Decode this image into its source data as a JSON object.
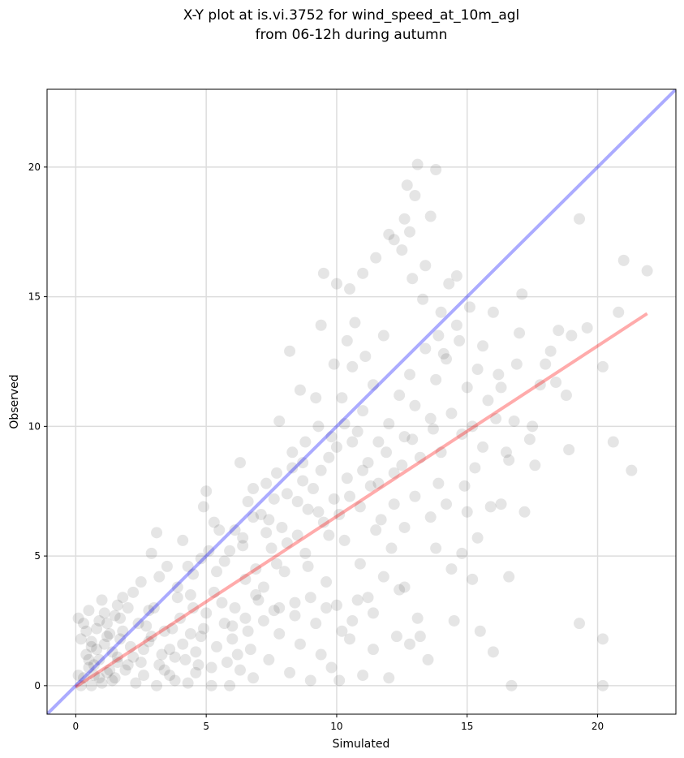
{
  "chart_data": {
    "type": "scatter",
    "title_line1": "X-Y plot at is.vi.3752 for wind_speed_at_10m_agl",
    "title_line2": "from 06-12h during autumn",
    "xlabel": "Simulated",
    "ylabel": "Observed",
    "xlim": [
      -1.1,
      23.0
    ],
    "ylim": [
      -1.1,
      23.0
    ],
    "xticks": [
      0,
      5,
      10,
      15,
      20
    ],
    "yticks": [
      0,
      5,
      10,
      15,
      20
    ],
    "grid": true,
    "colors": {
      "points": "#000000",
      "one_to_one_line": "#0000ff",
      "fit_line": "#ff0000"
    },
    "one_to_one_line": {
      "x": [
        -1.1,
        23.0
      ],
      "y": [
        -1.1,
        23.0
      ]
    },
    "fit_line": {
      "x": [
        0.0,
        21.9
      ],
      "y": [
        -0.05,
        14.35
      ]
    },
    "points": [
      [
        0.1,
        2.6
      ],
      [
        0.2,
        1.8
      ],
      [
        0.3,
        2.4
      ],
      [
        0.4,
        1.2
      ],
      [
        0.5,
        2.9
      ],
      [
        0.6,
        1.5
      ],
      [
        0.7,
        0.8
      ],
      [
        0.8,
        2.2
      ],
      [
        0.9,
        1.0
      ],
      [
        1.0,
        3.3
      ],
      [
        1.1,
        1.6
      ],
      [
        1.2,
        0.5
      ],
      [
        1.3,
        2.0
      ],
      [
        1.4,
        1.3
      ],
      [
        1.5,
        2.7
      ],
      [
        1.6,
        0.9
      ],
      [
        1.7,
        1.8
      ],
      [
        1.8,
        3.4
      ],
      [
        0.3,
        0.3
      ],
      [
        0.6,
        0.0
      ],
      [
        1.0,
        0.1
      ],
      [
        1.4,
        0.2
      ],
      [
        1.9,
        0.6
      ],
      [
        2.2,
        1.1
      ],
      [
        2.4,
        2.4
      ],
      [
        2.6,
        0.4
      ],
      [
        2.8,
        1.7
      ],
      [
        3.0,
        3.0
      ],
      [
        3.2,
        0.8
      ],
      [
        3.4,
        2.1
      ],
      [
        3.6,
        1.4
      ],
      [
        3.8,
        0.2
      ],
      [
        4.0,
        2.6
      ],
      [
        4.2,
        1.0
      ],
      [
        4.4,
        3.5
      ],
      [
        4.6,
        0.5
      ],
      [
        4.8,
        1.9
      ],
      [
        5.0,
        2.8
      ],
      [
        5.2,
        0.7
      ],
      [
        5.4,
        1.5
      ],
      [
        5.6,
        3.2
      ],
      [
        5.8,
        0.9
      ],
      [
        6.0,
        2.3
      ],
      [
        6.2,
        1.2
      ],
      [
        0.8,
        1.4
      ],
      [
        1.2,
        1.9
      ],
      [
        1.6,
        1.1
      ],
      [
        2.0,
        0.8
      ],
      [
        0.5,
        1.0
      ],
      [
        0.9,
        2.5
      ],
      [
        2.5,
        4.0
      ],
      [
        2.9,
        5.1
      ],
      [
        3.1,
        5.9
      ],
      [
        3.5,
        4.6
      ],
      [
        3.9,
        3.8
      ],
      [
        4.1,
        5.6
      ],
      [
        4.5,
        4.3
      ],
      [
        4.9,
        6.9
      ],
      [
        5.1,
        5.2
      ],
      [
        5.3,
        6.3
      ],
      [
        5.7,
        4.8
      ],
      [
        6.1,
        6.0
      ],
      [
        6.4,
        5.4
      ],
      [
        6.6,
        7.1
      ],
      [
        6.9,
        4.5
      ],
      [
        7.1,
        6.6
      ],
      [
        7.3,
        7.8
      ],
      [
        7.5,
        5.3
      ],
      [
        7.7,
        8.2
      ],
      [
        7.9,
        6.1
      ],
      [
        8.1,
        7.4
      ],
      [
        8.3,
        9.0
      ],
      [
        8.5,
        5.8
      ],
      [
        8.7,
        8.6
      ],
      [
        8.9,
        6.8
      ],
      [
        9.1,
        7.6
      ],
      [
        9.3,
        10.0
      ],
      [
        9.5,
        6.3
      ],
      [
        9.7,
        8.8
      ],
      [
        9.9,
        7.2
      ],
      [
        5.0,
        7.5
      ],
      [
        5.5,
        6.0
      ],
      [
        6.3,
        8.6
      ],
      [
        6.8,
        7.6
      ],
      [
        7.2,
        3.8
      ],
      [
        7.6,
        2.9
      ],
      [
        8.0,
        4.4
      ],
      [
        8.4,
        3.2
      ],
      [
        8.8,
        5.1
      ],
      [
        9.2,
        2.4
      ],
      [
        9.6,
        4.0
      ],
      [
        10.0,
        3.1
      ],
      [
        10.3,
        5.6
      ],
      [
        10.6,
        2.5
      ],
      [
        10.9,
        4.7
      ],
      [
        11.2,
        3.4
      ],
      [
        11.5,
        6.0
      ],
      [
        11.8,
        4.2
      ],
      [
        12.1,
        5.3
      ],
      [
        12.4,
        3.7
      ],
      [
        6.5,
        2.6
      ],
      [
        7.0,
        3.3
      ],
      [
        6.7,
        1.4
      ],
      [
        7.4,
        1.0
      ],
      [
        7.8,
        2.0
      ],
      [
        8.2,
        0.5
      ],
      [
        8.6,
        1.6
      ],
      [
        9.0,
        0.2
      ],
      [
        9.4,
        1.2
      ],
      [
        9.8,
        0.7
      ],
      [
        10.1,
        0.2
      ],
      [
        10.5,
        1.8
      ],
      [
        11.0,
        0.4
      ],
      [
        11.4,
        1.4
      ],
      [
        12.0,
        0.3
      ],
      [
        12.3,
        1.9
      ],
      [
        12.8,
        1.6
      ],
      [
        13.2,
        1.9
      ],
      [
        13.5,
        1.0
      ],
      [
        14.5,
        2.5
      ],
      [
        10.0,
        9.2
      ],
      [
        10.2,
        11.1
      ],
      [
        10.4,
        8.0
      ],
      [
        10.6,
        12.3
      ],
      [
        10.8,
        9.8
      ],
      [
        11.0,
        10.6
      ],
      [
        11.2,
        8.6
      ],
      [
        11.4,
        11.6
      ],
      [
        11.6,
        9.4
      ],
      [
        11.8,
        13.5
      ],
      [
        12.0,
        10.1
      ],
      [
        12.2,
        8.2
      ],
      [
        12.4,
        11.2
      ],
      [
        12.6,
        9.6
      ],
      [
        12.8,
        12.0
      ],
      [
        13.0,
        10.8
      ],
      [
        13.2,
        8.8
      ],
      [
        13.4,
        13.0
      ],
      [
        13.6,
        10.3
      ],
      [
        13.8,
        11.8
      ],
      [
        14.0,
        9.0
      ],
      [
        14.2,
        12.6
      ],
      [
        14.4,
        10.5
      ],
      [
        14.6,
        13.9
      ],
      [
        14.8,
        9.7
      ],
      [
        15.0,
        11.5
      ],
      [
        15.2,
        10.0
      ],
      [
        15.4,
        12.2
      ],
      [
        15.6,
        9.2
      ],
      [
        15.8,
        11.0
      ],
      [
        9.5,
        15.9
      ],
      [
        10.0,
        15.5
      ],
      [
        10.5,
        15.3
      ],
      [
        11.0,
        15.9
      ],
      [
        11.5,
        16.5
      ],
      [
        12.0,
        17.4
      ],
      [
        12.2,
        17.2
      ],
      [
        12.5,
        16.8
      ],
      [
        12.6,
        18.0
      ],
      [
        12.7,
        19.3
      ],
      [
        12.8,
        17.5
      ],
      [
        13.0,
        18.9
      ],
      [
        13.1,
        20.1
      ],
      [
        13.4,
        16.2
      ],
      [
        13.6,
        18.1
      ],
      [
        13.8,
        19.9
      ],
      [
        14.0,
        14.4
      ],
      [
        14.3,
        15.5
      ],
      [
        14.6,
        15.8
      ],
      [
        16.0,
        14.4
      ],
      [
        16.2,
        12.0
      ],
      [
        16.5,
        9.0
      ],
      [
        16.6,
        8.7
      ],
      [
        16.8,
        10.2
      ],
      [
        17.0,
        13.6
      ],
      [
        17.1,
        15.1
      ],
      [
        17.2,
        6.7
      ],
      [
        17.5,
        10.0
      ],
      [
        17.8,
        11.6
      ],
      [
        18.0,
        12.4
      ],
      [
        18.2,
        12.9
      ],
      [
        18.5,
        13.7
      ],
      [
        18.8,
        11.2
      ],
      [
        19.0,
        13.5
      ],
      [
        19.3,
        18.0
      ],
      [
        19.6,
        13.8
      ],
      [
        20.2,
        12.3
      ],
      [
        20.6,
        9.4
      ],
      [
        20.8,
        14.4
      ],
      [
        21.0,
        16.4
      ],
      [
        21.3,
        8.3
      ],
      [
        21.9,
        16.0
      ],
      [
        19.3,
        2.4
      ],
      [
        20.2,
        1.8
      ],
      [
        20.2,
        0.0
      ],
      [
        16.7,
        0.0
      ],
      [
        16.6,
        4.2
      ],
      [
        16.0,
        1.3
      ],
      [
        15.5,
        2.1
      ],
      [
        15.4,
        5.7
      ],
      [
        14.8,
        5.1
      ],
      [
        14.2,
        7.0
      ],
      [
        15.0,
        6.7
      ],
      [
        13.9,
        7.8
      ],
      [
        13.6,
        6.5
      ],
      [
        13.0,
        7.3
      ],
      [
        12.6,
        6.1
      ],
      [
        12.2,
        7.0
      ],
      [
        11.7,
        6.4
      ],
      [
        11.3,
        7.7
      ],
      [
        10.9,
        6.9
      ],
      [
        10.5,
        7.3
      ],
      [
        10.1,
        6.6
      ],
      [
        9.7,
        5.8
      ],
      [
        9.3,
        6.7
      ],
      [
        8.9,
        4.6
      ],
      [
        8.5,
        7.1
      ],
      [
        8.1,
        5.5
      ],
      [
        7.7,
        4.7
      ],
      [
        7.3,
        5.9
      ],
      [
        6.9,
        3.5
      ],
      [
        6.5,
        4.1
      ],
      [
        6.1,
        3.0
      ],
      [
        5.7,
        2.4
      ],
      [
        5.3,
        3.6
      ],
      [
        4.9,
        2.2
      ],
      [
        4.5,
        3.0
      ],
      [
        4.1,
        1.6
      ],
      [
        3.7,
        2.2
      ],
      [
        3.3,
        1.2
      ],
      [
        2.9,
        1.9
      ],
      [
        2.5,
        0.9
      ],
      [
        2.1,
        1.5
      ],
      [
        1.7,
        2.6
      ],
      [
        1.3,
        0.6
      ],
      [
        0.9,
        0.3
      ],
      [
        0.5,
        0.7
      ],
      [
        0.1,
        0.4
      ],
      [
        0.2,
        0.0
      ],
      [
        0.7,
        0.4
      ],
      [
        2.3,
        0.1
      ],
      [
        3.1,
        0.0
      ],
      [
        3.6,
        0.4
      ],
      [
        4.3,
        0.1
      ],
      [
        4.7,
        0.8
      ],
      [
        5.9,
        0.0
      ],
      [
        6.3,
        0.6
      ],
      [
        6.8,
        0.3
      ],
      [
        5.2,
        0.0
      ],
      [
        4.6,
        1.3
      ],
      [
        3.4,
        0.6
      ],
      [
        2.7,
        2.3
      ],
      [
        2.0,
        3.0
      ],
      [
        1.8,
        2.1
      ],
      [
        1.1,
        2.8
      ],
      [
        0.4,
        2.1
      ],
      [
        1.5,
        0.3
      ],
      [
        2.6,
        1.4
      ],
      [
        3.8,
        1.1
      ],
      [
        4.4,
        2.0
      ],
      [
        6.0,
        1.8
      ],
      [
        6.6,
        2.1
      ],
      [
        7.2,
        2.5
      ],
      [
        7.8,
        3.0
      ],
      [
        8.4,
        2.7
      ],
      [
        9.0,
        3.4
      ],
      [
        9.6,
        3.0
      ],
      [
        10.2,
        2.1
      ],
      [
        10.8,
        3.3
      ],
      [
        11.4,
        2.8
      ],
      [
        12.6,
        3.8
      ],
      [
        13.1,
        2.6
      ],
      [
        13.8,
        5.3
      ],
      [
        14.4,
        4.5
      ],
      [
        15.2,
        4.1
      ],
      [
        15.9,
        6.9
      ],
      [
        16.3,
        7.0
      ],
      [
        17.6,
        8.5
      ],
      [
        18.4,
        11.7
      ],
      [
        18.9,
        9.1
      ],
      [
        11.1,
        12.7
      ],
      [
        10.4,
        13.3
      ],
      [
        9.9,
        12.4
      ],
      [
        9.2,
        11.1
      ],
      [
        8.6,
        11.4
      ],
      [
        8.2,
        12.9
      ],
      [
        7.8,
        10.2
      ],
      [
        8.8,
        9.4
      ],
      [
        9.4,
        13.9
      ],
      [
        10.7,
        14.0
      ],
      [
        12.9,
        15.7
      ],
      [
        13.3,
        14.9
      ],
      [
        13.9,
        13.5
      ],
      [
        14.1,
        12.8
      ],
      [
        14.7,
        13.3
      ],
      [
        15.1,
        14.6
      ],
      [
        15.6,
        13.1
      ],
      [
        16.3,
        11.5
      ],
      [
        16.9,
        12.4
      ],
      [
        17.4,
        9.5
      ],
      [
        16.1,
        10.3
      ],
      [
        15.3,
        8.4
      ],
      [
        14.9,
        7.7
      ],
      [
        13.7,
        9.9
      ],
      [
        12.9,
        9.5
      ],
      [
        12.5,
        8.5
      ],
      [
        11.9,
        9.0
      ],
      [
        11.6,
        7.8
      ],
      [
        11.0,
        8.3
      ],
      [
        10.6,
        9.4
      ],
      [
        10.3,
        10.1
      ],
      [
        9.8,
        9.6
      ],
      [
        9.4,
        8.3
      ],
      [
        8.7,
        7.9
      ],
      [
        8.3,
        8.4
      ],
      [
        7.6,
        7.2
      ],
      [
        7.4,
        6.4
      ],
      [
        6.8,
        6.5
      ],
      [
        6.4,
        5.7
      ],
      [
        5.9,
        5.2
      ],
      [
        5.4,
        4.4
      ],
      [
        4.8,
        4.9
      ],
      [
        4.3,
        4.6
      ],
      [
        3.9,
        3.4
      ],
      [
        3.2,
        4.2
      ],
      [
        2.8,
        2.9
      ],
      [
        2.2,
        3.6
      ],
      [
        1.6,
        3.1
      ],
      [
        1.2,
        2.4
      ],
      [
        0.6,
        1.7
      ]
    ]
  }
}
